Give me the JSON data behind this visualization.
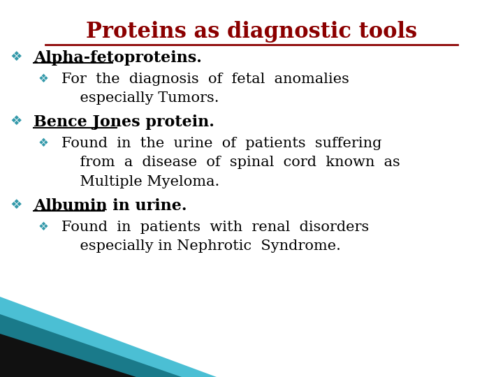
{
  "title": "Proteins as diagnostic tools",
  "title_color": "#8B0000",
  "title_fontsize": 22,
  "background_color": "#FFFFFF",
  "bullet_color": "#3399AA",
  "text_color": "#000000",
  "content": [
    {
      "level": 1,
      "text": "Alpha-fetoproteins.",
      "underline": true,
      "bold": true,
      "fontsize": 16
    },
    {
      "level": 2,
      "lines": [
        "For  the  diagnosis  of  fetal  anomalies",
        "    especially Tumors."
      ],
      "underline": false,
      "bold": false,
      "fontsize": 15
    },
    {
      "level": 1,
      "text": "Bence Jones protein.",
      "underline": true,
      "bold": true,
      "fontsize": 16
    },
    {
      "level": 2,
      "lines": [
        "Found  in  the  urine  of  patients  suffering",
        "    from  a  disease  of  spinal  cord  known  as",
        "    Multiple Myeloma."
      ],
      "underline": false,
      "bold": false,
      "fontsize": 15
    },
    {
      "level": 1,
      "text": "Albumin in urine.",
      "underline": true,
      "bold": true,
      "fontsize": 16
    },
    {
      "level": 2,
      "lines": [
        "Found  in  patients  with  renal  disorders",
        "    especially in Nephrotic  Syndrome."
      ],
      "underline": false,
      "bold": false,
      "fontsize": 15
    }
  ],
  "bottom_triangle": {
    "teal_light": "#4BBFD4",
    "teal_dark": "#1A7A8A",
    "black": "#111111"
  },
  "figsize": [
    7.2,
    5.4
  ],
  "dpi": 100
}
